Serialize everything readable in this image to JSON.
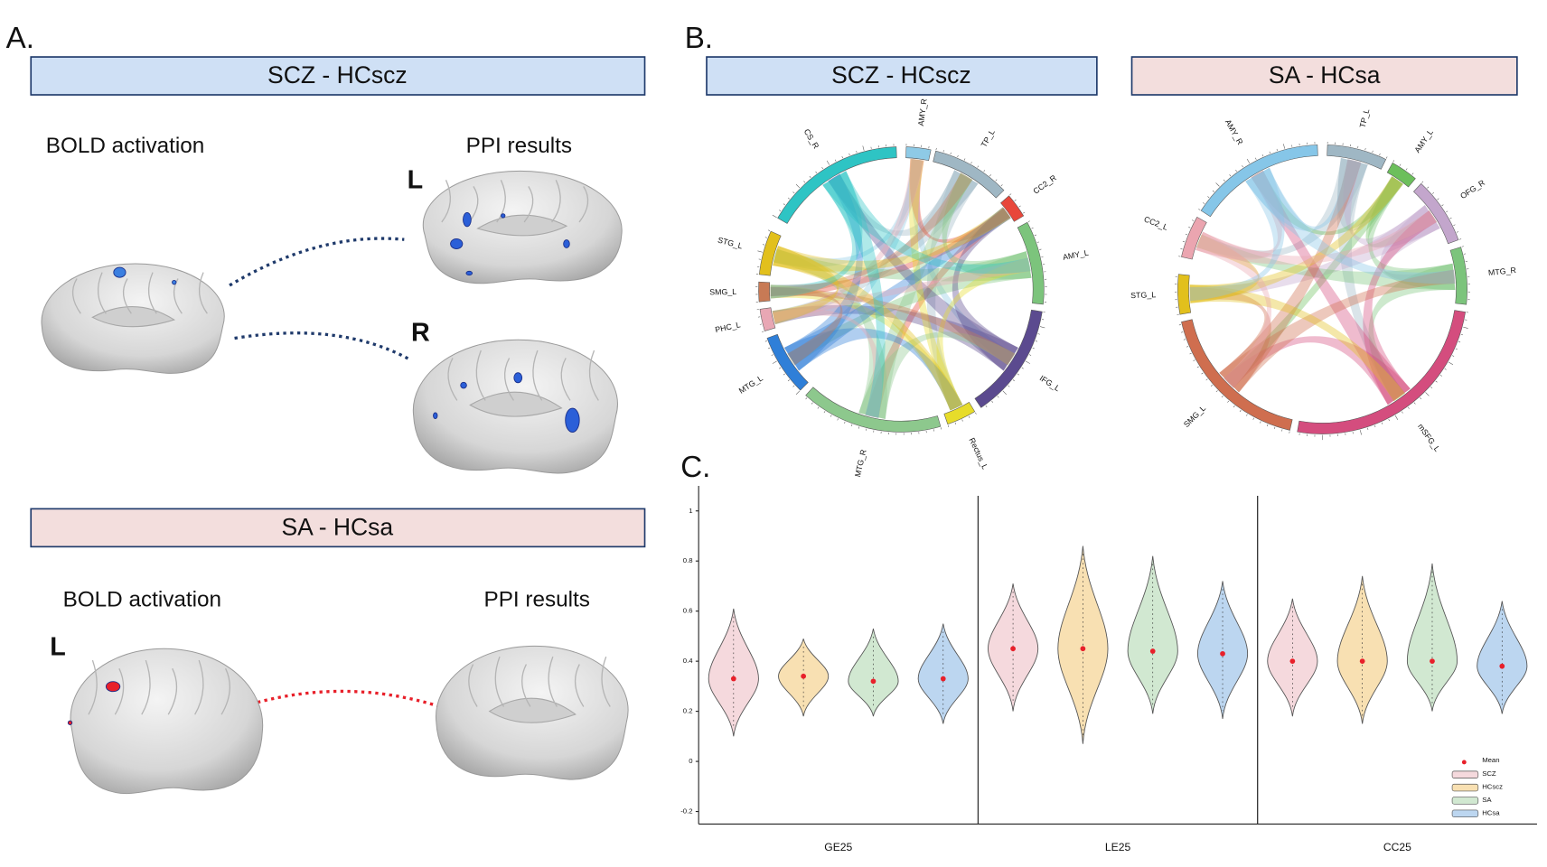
{
  "panel_a": {
    "label": "A.",
    "scz": {
      "title": "SCZ - HCscz",
      "left_label": "BOLD activation",
      "right_label": "PPI results",
      "hemi_top": "L",
      "hemi_bottom": "R"
    },
    "sa": {
      "title": "SA - HCsa",
      "left_label": "BOLD activation",
      "right_label": "PPI results",
      "hemi": "L"
    }
  },
  "panel_b": {
    "label": "B.",
    "scz": {
      "title": "SCZ - HCscz",
      "regions": [
        {
          "name": "AMY_R",
          "color": "#8ecae6"
        },
        {
          "name": "TP_L",
          "color": "#9fb7c4"
        },
        {
          "name": "CC2_R",
          "color": "#e8473a"
        },
        {
          "name": "AMY_L",
          "color": "#7cc47c"
        },
        {
          "name": "IFG_L",
          "color": "#5b4a8f"
        },
        {
          "name": "Rectus_L",
          "color": "#e7dc2a"
        },
        {
          "name": "MTG_R",
          "color": "#8dc88d"
        },
        {
          "name": "MTG_L",
          "color": "#2f7fd8"
        },
        {
          "name": "PHC_L",
          "color": "#e8a7b4"
        },
        {
          "name": "SMG_L",
          "color": "#c87a55"
        },
        {
          "name": "STG_L",
          "color": "#e2c01c"
        },
        {
          "name": "CS_R",
          "color": "#2ec4c4"
        }
      ]
    },
    "sa": {
      "title": "SA - HCsa",
      "regions": [
        {
          "name": "TP_L",
          "color": "#9fb7c4"
        },
        {
          "name": "AMY_L",
          "color": "#6cbf5c"
        },
        {
          "name": "OFG_R",
          "color": "#c3a6cc"
        },
        {
          "name": "MTG_R",
          "color": "#7cc47c"
        },
        {
          "name": "mSFG_L",
          "color": "#d44d7e"
        },
        {
          "name": "SMG_L",
          "color": "#cf6e4f"
        },
        {
          "name": "STG_L",
          "color": "#e2c01c"
        },
        {
          "name": "CC2_L",
          "color": "#eba5b0"
        },
        {
          "name": "AMY_R",
          "color": "#86c6e8"
        }
      ]
    }
  },
  "panel_c_label": "C.",
  "chart_data": {
    "type": "violin",
    "categories": [
      "GE25",
      "LE25",
      "CC25"
    ],
    "series": [
      {
        "name": "SCZ",
        "color": "#f5d9dd",
        "values": [
          0.33,
          0.45,
          0.4
        ],
        "min": [
          0.1,
          0.2,
          0.18
        ],
        "max": [
          0.61,
          0.71,
          0.65
        ]
      },
      {
        "name": "HCscz",
        "color": "#f8e0b2",
        "values": [
          0.34,
          0.45,
          0.4
        ],
        "min": [
          0.18,
          0.07,
          0.15
        ],
        "max": [
          0.49,
          0.86,
          0.74
        ]
      },
      {
        "name": "SA",
        "color": "#d1e8d1",
        "values": [
          0.32,
          0.44,
          0.4
        ],
        "min": [
          0.18,
          0.19,
          0.2
        ],
        "max": [
          0.53,
          0.82,
          0.79
        ]
      },
      {
        "name": "HCsa",
        "color": "#bcd6f0",
        "values": [
          0.33,
          0.43,
          0.38
        ],
        "min": [
          0.15,
          0.17,
          0.19
        ],
        "max": [
          0.55,
          0.72,
          0.64
        ]
      }
    ],
    "mean_label": "Mean",
    "mean_color": "#e8202a",
    "ylim": [
      -0.25,
      1.1
    ],
    "yticks": [
      -0.2,
      0,
      0.2,
      0.4,
      0.6,
      0.8,
      1
    ],
    "legend": "lower right"
  }
}
